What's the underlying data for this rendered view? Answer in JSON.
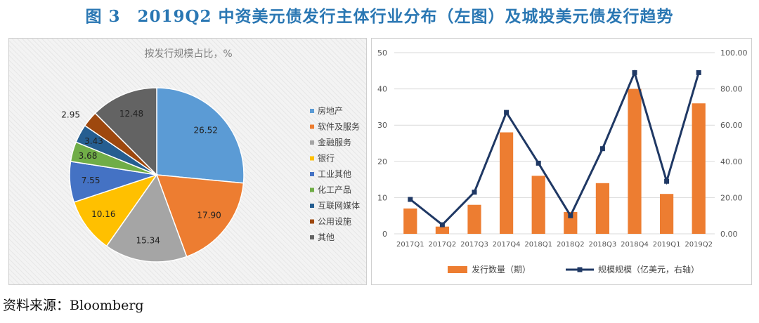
{
  "figure_title": "图 3　2019Q2 中资美元债发行主体行业分布（左图）及城投美元债发行趋势",
  "source": "资料来源：Bloomberg",
  "chart_data": [
    {
      "type": "pie",
      "title": "按发行规模占比，%",
      "legend_position": "right",
      "slices": [
        {
          "label": "房地产",
          "value": 26.52,
          "color": "#5b9bd5"
        },
        {
          "label": "软件及服务",
          "value": 17.9,
          "color": "#ed7d31"
        },
        {
          "label": "金融服务",
          "value": 15.34,
          "color": "#a5a5a5"
        },
        {
          "label": "银行",
          "value": 10.16,
          "color": "#ffc000"
        },
        {
          "label": "工业其他",
          "value": 7.55,
          "color": "#4472c4"
        },
        {
          "label": "化工产品",
          "value": 3.68,
          "color": "#70ad47"
        },
        {
          "label": "互联网媒体",
          "value": 3.43,
          "color": "#255e91"
        },
        {
          "label": "公用设施",
          "value": 2.95,
          "color": "#9e480e"
        },
        {
          "label": "其他",
          "value": 12.48,
          "color": "#636363"
        }
      ]
    },
    {
      "type": "bar+line",
      "categories": [
        "2017Q1",
        "2017Q2",
        "2017Q3",
        "2017Q4",
        "2018Q1",
        "2018Q2",
        "2018Q3",
        "2018Q4",
        "2019Q1",
        "2019Q2"
      ],
      "y_left": {
        "min": 0,
        "max": 50,
        "ticks": [
          "0",
          "10",
          "20",
          "30",
          "40",
          "50"
        ]
      },
      "y_right": {
        "min": 0,
        "max": 100,
        "ticks": [
          "0.00",
          "20.00",
          "40.00",
          "60.00",
          "80.00",
          "100.00"
        ]
      },
      "legend_position": "bottom",
      "series": [
        {
          "name": "发行数量（期）",
          "kind": "bar",
          "axis": "left",
          "color": "#ed7d31",
          "values": [
            7,
            2,
            8,
            28,
            16,
            6,
            14,
            40,
            11,
            36
          ]
        },
        {
          "name": "规模规模（亿美元，右轴）",
          "kind": "line",
          "axis": "right",
          "color": "#1f3864",
          "values": [
            19,
            5,
            23,
            67,
            39,
            10,
            47,
            89,
            29,
            89
          ]
        }
      ]
    }
  ]
}
